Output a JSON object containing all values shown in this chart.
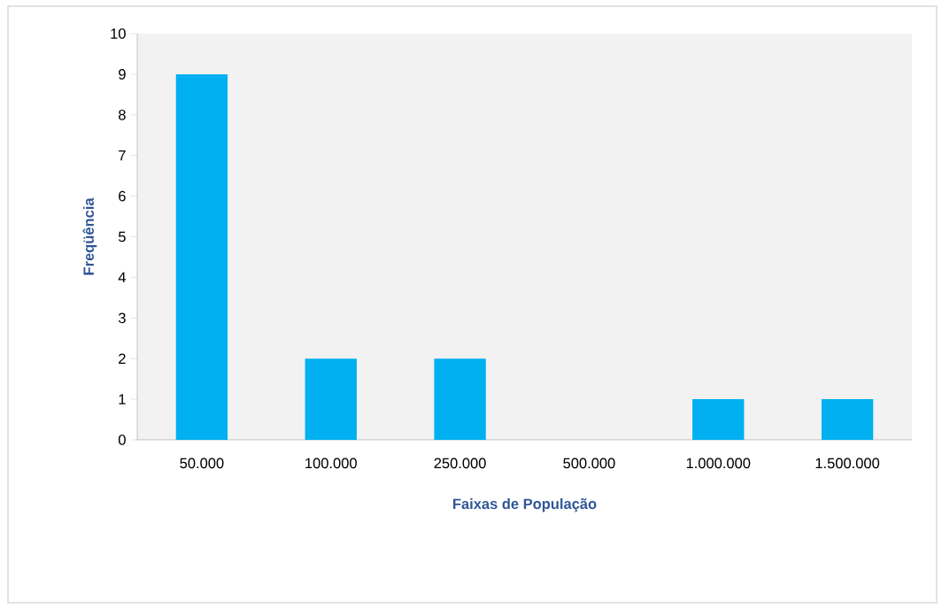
{
  "chart_data": {
    "type": "bar",
    "xlabel": "Faixas de População",
    "ylabel": "Freqüência",
    "categories": [
      "50.000",
      "100.000",
      "250.000",
      "500.000",
      "1.000.000",
      "1.500.000"
    ],
    "values": [
      9,
      2,
      2,
      0,
      1,
      1
    ],
    "color": "#00b0f0",
    "ylim": [
      0,
      10
    ],
    "yticks": [
      0,
      1,
      2,
      3,
      4,
      5,
      6,
      7,
      8,
      9,
      10
    ]
  }
}
